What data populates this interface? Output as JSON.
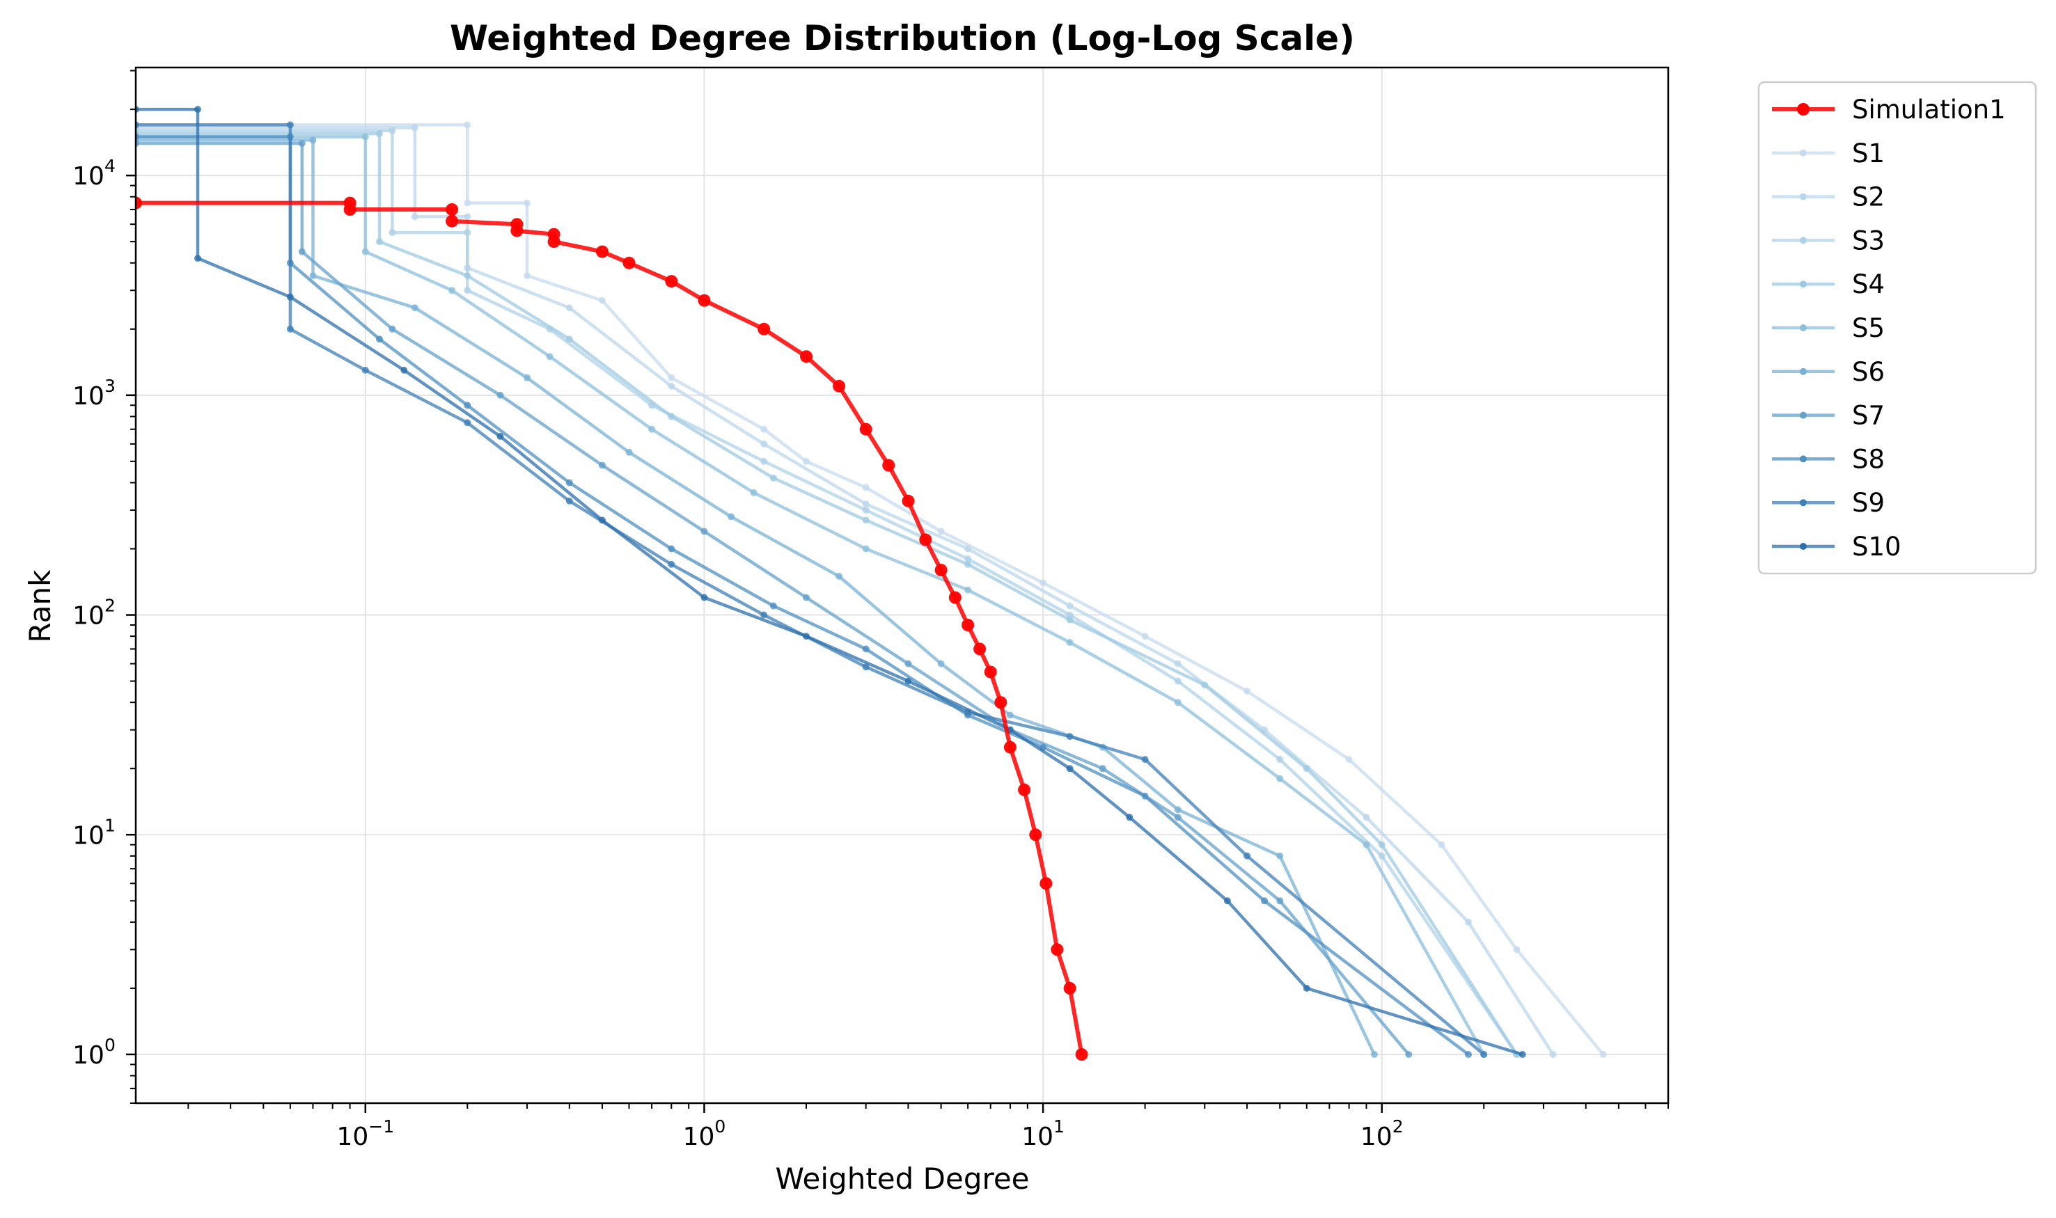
{
  "chart_data": {
    "type": "line",
    "title": "Weighted Degree Distribution (Log-Log Scale)",
    "xlabel": "Weighted Degree",
    "ylabel": "Rank",
    "xscale": "log",
    "yscale": "log",
    "xlim": [
      0.021,
      700
    ],
    "ylim": [
      0.6,
      31000
    ],
    "grid": true,
    "legend_position": "outside-right-top",
    "x_ticks": [
      {
        "value": 0.1,
        "base": "10",
        "exp": "−1"
      },
      {
        "value": 1,
        "base": "10",
        "exp": "0"
      },
      {
        "value": 10,
        "base": "10",
        "exp": "1"
      },
      {
        "value": 100,
        "base": "10",
        "exp": "2"
      }
    ],
    "y_ticks": [
      {
        "value": 1,
        "base": "10",
        "exp": "0"
      },
      {
        "value": 10,
        "base": "10",
        "exp": "1"
      },
      {
        "value": 100,
        "base": "10",
        "exp": "2"
      },
      {
        "value": 1000,
        "base": "10",
        "exp": "3"
      },
      {
        "value": 10000,
        "base": "10",
        "exp": "4"
      }
    ],
    "series": [
      {
        "name": "Simulation1",
        "color": "#ff0000",
        "points": [
          [
            0.021,
            7500
          ],
          [
            0.09,
            7500
          ],
          [
            0.09,
            7000
          ],
          [
            0.18,
            7000
          ],
          [
            0.18,
            6200
          ],
          [
            0.28,
            6000
          ],
          [
            0.28,
            5600
          ],
          [
            0.36,
            5400
          ],
          [
            0.36,
            5000
          ],
          [
            0.5,
            4500
          ],
          [
            0.6,
            4000
          ],
          [
            0.8,
            3300
          ],
          [
            1.0,
            2700
          ],
          [
            1.5,
            2000
          ],
          [
            2.0,
            1500
          ],
          [
            2.5,
            1100
          ],
          [
            3.0,
            700
          ],
          [
            3.5,
            480
          ],
          [
            4.0,
            330
          ],
          [
            4.5,
            220
          ],
          [
            5.0,
            160
          ],
          [
            5.5,
            120
          ],
          [
            6.0,
            90
          ],
          [
            6.5,
            70
          ],
          [
            7.0,
            55
          ],
          [
            7.5,
            40
          ],
          [
            8.0,
            25
          ],
          [
            8.8,
            16
          ],
          [
            9.5,
            10
          ],
          [
            10.2,
            6
          ],
          [
            11.0,
            3
          ],
          [
            12.0,
            2
          ],
          [
            13.0,
            1
          ]
        ]
      },
      {
        "name": "S1",
        "color": "#c6dbef",
        "points": [
          [
            0.021,
            17000
          ],
          [
            0.2,
            17000
          ],
          [
            0.2,
            7500
          ],
          [
            0.3,
            7500
          ],
          [
            0.3,
            3500
          ],
          [
            0.5,
            2700
          ],
          [
            0.8,
            1200
          ],
          [
            1.5,
            700
          ],
          [
            2,
            500
          ],
          [
            3,
            380
          ],
          [
            5,
            240
          ],
          [
            10,
            140
          ],
          [
            20,
            80
          ],
          [
            40,
            45
          ],
          [
            80,
            22
          ],
          [
            150,
            9
          ],
          [
            250,
            3
          ],
          [
            450,
            1
          ]
        ]
      },
      {
        "name": "S2",
        "color": "#bad6eb",
        "points": [
          [
            0.021,
            16500
          ],
          [
            0.14,
            16500
          ],
          [
            0.14,
            6500
          ],
          [
            0.2,
            6500
          ],
          [
            0.2,
            3800
          ],
          [
            0.4,
            2500
          ],
          [
            0.8,
            1100
          ],
          [
            1.5,
            600
          ],
          [
            3,
            320
          ],
          [
            6,
            200
          ],
          [
            12,
            110
          ],
          [
            25,
            60
          ],
          [
            45,
            30
          ],
          [
            90,
            12
          ],
          [
            180,
            4
          ],
          [
            320,
            1
          ]
        ]
      },
      {
        "name": "S3",
        "color": "#aed1e7",
        "points": [
          [
            0.021,
            16000
          ],
          [
            0.12,
            16000
          ],
          [
            0.12,
            5500
          ],
          [
            0.2,
            5500
          ],
          [
            0.2,
            3000
          ],
          [
            0.35,
            2000
          ],
          [
            0.7,
            900
          ],
          [
            1.5,
            500
          ],
          [
            3,
            300
          ],
          [
            6,
            180
          ],
          [
            12,
            100
          ],
          [
            25,
            50
          ],
          [
            50,
            22
          ],
          [
            100,
            8
          ],
          [
            250,
            1
          ]
        ]
      },
      {
        "name": "S4",
        "color": "#9ecae1",
        "points": [
          [
            0.021,
            15500
          ],
          [
            0.11,
            15500
          ],
          [
            0.11,
            5000
          ],
          [
            0.2,
            3500
          ],
          [
            0.4,
            1800
          ],
          [
            0.8,
            800
          ],
          [
            1.6,
            420
          ],
          [
            3,
            270
          ],
          [
            6,
            170
          ],
          [
            12,
            95
          ],
          [
            30,
            48
          ],
          [
            60,
            20
          ],
          [
            100,
            9
          ],
          [
            250,
            1
          ]
        ]
      },
      {
        "name": "S5",
        "color": "#8bbfdc",
        "points": [
          [
            0.021,
            15000
          ],
          [
            0.1,
            15000
          ],
          [
            0.1,
            4500
          ],
          [
            0.18,
            3000
          ],
          [
            0.35,
            1500
          ],
          [
            0.7,
            700
          ],
          [
            1.4,
            360
          ],
          [
            3,
            200
          ],
          [
            6,
            130
          ],
          [
            12,
            75
          ],
          [
            25,
            40
          ],
          [
            50,
            18
          ],
          [
            90,
            9
          ],
          [
            200,
            1
          ]
        ]
      },
      {
        "name": "S6",
        "color": "#78b1d7",
        "points": [
          [
            0.021,
            14500
          ],
          [
            0.07,
            14500
          ],
          [
            0.07,
            3500
          ],
          [
            0.14,
            2500
          ],
          [
            0.3,
            1200
          ],
          [
            0.6,
            550
          ],
          [
            1.2,
            280
          ],
          [
            2.5,
            150
          ],
          [
            5,
            60
          ],
          [
            8,
            35
          ],
          [
            15,
            25
          ],
          [
            25,
            13
          ],
          [
            50,
            8
          ],
          [
            95,
            1
          ]
        ]
      },
      {
        "name": "S7",
        "color": "#63a0cc",
        "points": [
          [
            0.021,
            14000
          ],
          [
            0.065,
            14000
          ],
          [
            0.065,
            4500
          ],
          [
            0.12,
            2000
          ],
          [
            0.25,
            1000
          ],
          [
            0.5,
            480
          ],
          [
            1,
            240
          ],
          [
            2,
            120
          ],
          [
            4,
            60
          ],
          [
            8,
            30
          ],
          [
            15,
            20
          ],
          [
            25,
            12
          ],
          [
            50,
            5
          ],
          [
            120,
            1
          ]
        ]
      },
      {
        "name": "S8",
        "color": "#4e8fc2",
        "points": [
          [
            0.021,
            15000
          ],
          [
            0.06,
            15000
          ],
          [
            0.06,
            4000
          ],
          [
            0.11,
            1800
          ],
          [
            0.2,
            900
          ],
          [
            0.4,
            400
          ],
          [
            0.8,
            200
          ],
          [
            1.6,
            110
          ],
          [
            3,
            70
          ],
          [
            6,
            35
          ],
          [
            10,
            25
          ],
          [
            20,
            15
          ],
          [
            45,
            5
          ],
          [
            180,
            1
          ]
        ]
      },
      {
        "name": "S9",
        "color": "#3d7fb8",
        "points": [
          [
            0.021,
            17000
          ],
          [
            0.06,
            17000
          ],
          [
            0.06,
            2000
          ],
          [
            0.1,
            1300
          ],
          [
            0.2,
            750
          ],
          [
            0.4,
            330
          ],
          [
            0.8,
            170
          ],
          [
            1.5,
            100
          ],
          [
            3,
            58
          ],
          [
            6,
            36
          ],
          [
            12,
            28
          ],
          [
            20,
            22
          ],
          [
            40,
            8
          ],
          [
            200,
            1
          ]
        ]
      },
      {
        "name": "S10",
        "color": "#2b6fad",
        "points": [
          [
            0.021,
            20000
          ],
          [
            0.032,
            20000
          ],
          [
            0.032,
            4200
          ],
          [
            0.06,
            2800
          ],
          [
            0.13,
            1300
          ],
          [
            0.25,
            650
          ],
          [
            0.5,
            270
          ],
          [
            1,
            120
          ],
          [
            2,
            80
          ],
          [
            4,
            50
          ],
          [
            8,
            30
          ],
          [
            12,
            20
          ],
          [
            18,
            12
          ],
          [
            35,
            5
          ],
          [
            60,
            2
          ],
          [
            260,
            1
          ]
        ]
      }
    ]
  }
}
